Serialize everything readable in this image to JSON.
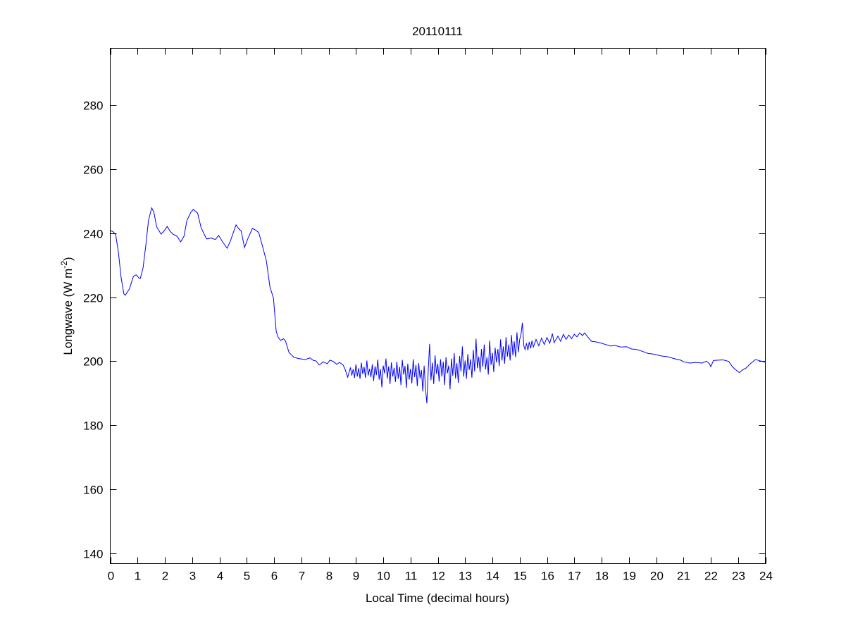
{
  "chart_data": {
    "type": "line",
    "title": "20110111",
    "xlabel": "Local Time (decimal hours)",
    "ylabel": {
      "main": "Longwave (W m",
      "sup": "-2",
      "close": ")"
    },
    "xlim": [
      0,
      24
    ],
    "ylim": [
      136.7,
      297.8
    ],
    "xticks": [
      0,
      1,
      2,
      3,
      4,
      5,
      6,
      7,
      8,
      9,
      10,
      11,
      12,
      13,
      14,
      15,
      16,
      17,
      18,
      19,
      20,
      21,
      22,
      23,
      24
    ],
    "yticks": [
      140,
      160,
      180,
      200,
      220,
      240,
      260,
      280
    ],
    "grid": false,
    "line_color": "#0000ff",
    "series": [
      {
        "x": [
          0,
          0.1,
          0.2,
          0.3,
          0.4,
          0.5,
          0.55,
          0.7,
          0.85,
          0.95,
          1.05,
          1.1,
          1.2,
          1.3,
          1.4,
          1.52,
          1.6,
          1.7,
          1.86,
          1.95,
          2.09,
          2.2,
          2.3,
          2.45,
          2.58,
          2.7,
          2.81,
          2.95,
          3.04,
          3.2,
          3.33,
          3.45,
          3.53,
          3.7,
          3.85,
          3.97,
          4.1,
          4.28,
          4.4,
          4.5,
          4.61,
          4.7,
          4.8,
          4.92,
          5.05,
          5.21,
          5.32,
          5.44,
          5.57,
          5.72,
          5.85,
          5.98,
          6.08,
          6.15,
          6.24,
          6.35,
          6.42,
          6.55,
          6.73,
          6.9,
          7.14,
          7.32,
          7.45,
          7.53,
          7.66,
          7.8,
          7.95,
          8.05,
          8.17,
          8.3,
          8.4,
          8.53,
          8.6,
          8.7,
          8.8,
          8.85,
          8.9,
          8.95,
          9.0,
          9.05,
          9.1,
          9.15,
          9.2,
          9.25,
          9.3,
          9.35,
          9.4,
          9.45,
          9.5,
          9.55,
          9.6,
          9.65,
          9.7,
          9.75,
          9.8,
          9.85,
          9.9,
          9.95,
          10.0,
          10.05,
          10.1,
          10.15,
          10.2,
          10.25,
          10.3,
          10.35,
          10.4,
          10.45,
          10.5,
          10.55,
          10.6,
          10.65,
          10.7,
          10.75,
          10.8,
          10.85,
          10.9,
          10.95,
          11.0,
          11.05,
          11.1,
          11.15,
          11.2,
          11.25,
          11.3,
          11.35,
          11.4,
          11.45,
          11.5,
          11.55,
          11.6,
          11.65,
          11.7,
          11.75,
          11.8,
          11.85,
          11.9,
          11.95,
          12.0,
          12.05,
          12.1,
          12.15,
          12.2,
          12.25,
          12.3,
          12.35,
          12.4,
          12.45,
          12.5,
          12.55,
          12.6,
          12.65,
          12.7,
          12.75,
          12.8,
          12.85,
          12.9,
          12.95,
          13.0,
          13.05,
          13.1,
          13.15,
          13.2,
          13.25,
          13.3,
          13.35,
          13.4,
          13.45,
          13.5,
          13.55,
          13.6,
          13.65,
          13.7,
          13.75,
          13.8,
          13.85,
          13.9,
          13.95,
          14.0,
          14.05,
          14.1,
          14.15,
          14.2,
          14.25,
          14.3,
          14.35,
          14.4,
          14.45,
          14.5,
          14.55,
          14.6,
          14.65,
          14.7,
          14.75,
          14.8,
          14.85,
          14.9,
          14.95,
          15.0,
          15.05,
          15.1,
          15.15,
          15.2,
          15.25,
          15.3,
          15.35,
          15.4,
          15.45,
          15.5,
          15.6,
          15.7,
          15.8,
          15.9,
          16.0,
          16.1,
          16.2,
          16.26,
          16.4,
          16.5,
          16.6,
          16.7,
          16.8,
          16.9,
          17.0,
          17.1,
          17.2,
          17.3,
          17.38,
          17.5,
          17.63,
          17.8,
          18.0,
          18.15,
          18.33,
          18.5,
          18.7,
          18.92,
          19.1,
          19.3,
          19.52,
          19.7,
          19.9,
          20.2,
          20.4,
          20.65,
          20.9,
          21.0,
          21.24,
          21.45,
          21.68,
          21.84,
          21.95,
          22.0,
          22.1,
          22.27,
          22.45,
          22.66,
          22.79,
          22.9,
          23.05,
          23.15,
          23.3,
          23.45,
          23.64,
          23.8,
          23.95,
          24
        ],
        "y": [
          240.8,
          240.5,
          239.5,
          234,
          226,
          221,
          220.6,
          222.5,
          226.5,
          227,
          226,
          225.8,
          229,
          236,
          244,
          247.9,
          246.5,
          242,
          239.7,
          240.5,
          242.1,
          240.5,
          239.7,
          239,
          237.3,
          239,
          244,
          246.5,
          247.4,
          246.3,
          241.7,
          239.5,
          238.2,
          238.5,
          238,
          239.3,
          237.5,
          235.3,
          237.5,
          240,
          242.6,
          241.5,
          240.6,
          235.5,
          238.5,
          241.5,
          241,
          240.2,
          236.2,
          231.4,
          223.2,
          219.7,
          209.3,
          207.5,
          206.5,
          207,
          206.3,
          202.7,
          201.2,
          200.8,
          200.5,
          201,
          200.2,
          200.1,
          198.8,
          199.8,
          199.2,
          200.3,
          199.9,
          199,
          199.6,
          198.8,
          197.5,
          195,
          198,
          195.5,
          197.5,
          194.8,
          199,
          195.2,
          197.8,
          194.5,
          199.5,
          196,
          198.2,
          194.8,
          200.2,
          195.5,
          197.6,
          195,
          199,
          193.8,
          198.4,
          195.6,
          200.5,
          194.2,
          197.5,
          191.8,
          198.6,
          196.2,
          200.8,
          194.6,
          198.4,
          192.8,
          199.6,
          195.2,
          197.9,
          193.5,
          199.8,
          194.5,
          198.2,
          192.5,
          200.4,
          195.8,
          198.5,
          191.6,
          199.2,
          194.2,
          197.6,
          193,
          200.6,
          195,
          198.8,
          192.2,
          199.4,
          194.6,
          197.2,
          190.5,
          198.6,
          191.2,
          186.8,
          197,
          205.4,
          194,
          199.5,
          192.8,
          201.8,
          196,
          199.2,
          193.6,
          200.6,
          195.2,
          199.8,
          192.5,
          201.2,
          196.2,
          198.6,
          191.2,
          200.8,
          195.4,
          202.5,
          194.6,
          199.4,
          193.2,
          201.6,
          196.8,
          204.6,
          195.2,
          200.2,
          194.5,
          202.2,
          197.2,
          200.6,
          194.8,
          203.5,
          196.8,
          207,
          197.8,
          201.4,
          196.5,
          203.8,
          198.2,
          205.2,
          197.4,
          201.2,
          195.8,
          206.4,
          198.8,
          202.6,
          196.6,
          204.2,
          199.6,
          203.8,
          198.4,
          206.8,
          200.2,
          204.6,
          199.2,
          207.5,
          201.4,
          205.2,
          200.2,
          208.2,
          201.8,
          206.2,
          201.2,
          209,
          202.8,
          206.8,
          208.5,
          212,
          204.8,
          203.6,
          205.6,
          203.4,
          206,
          204,
          206.4,
          204.4,
          206.8,
          204.8,
          207.2,
          205.2,
          207.4,
          205.6,
          208.6,
          205.8,
          207.8,
          206.2,
          208.4,
          206.8,
          208.2,
          207,
          208.4,
          207.6,
          208.8,
          208,
          208.8,
          207.5,
          206.2,
          206,
          205.6,
          205.2,
          204.7,
          204.9,
          204.4,
          204.5,
          203.8,
          203.6,
          203,
          202.4,
          202.2,
          201.6,
          201.4,
          200.8,
          200.3,
          199.8,
          199.4,
          199.6,
          199.4,
          200,
          199.2,
          198.3,
          200.2,
          200.3,
          200.4,
          199.9,
          198.3,
          197.4,
          196.4,
          197.2,
          197.9,
          199.2,
          200.5,
          200.1,
          199.8,
          199.6
        ]
      }
    ]
  }
}
